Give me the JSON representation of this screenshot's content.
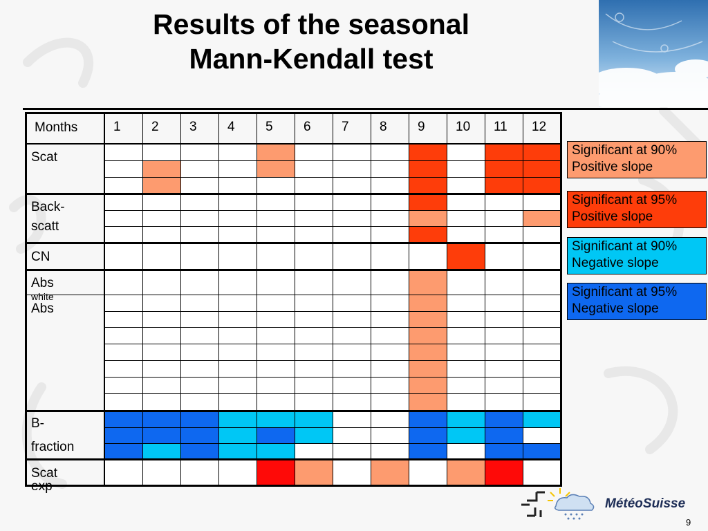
{
  "title": {
    "line1": "Results of the seasonal",
    "line2": "Mann-Kendall test"
  },
  "colors": {
    "sig90_pos": "#fd9b6f",
    "sig95_pos": "#fe3d0a",
    "sig90_neg": "#00c7f5",
    "sig95_neg": "#0e68f0",
    "strong_red": "#fe0a08",
    "none": "#ffffff"
  },
  "table": {
    "months_label": "Months",
    "months": [
      "1",
      "2",
      "3",
      "4",
      "5",
      "6",
      "7",
      "8",
      "9",
      "10",
      "11",
      "12"
    ],
    "groups": [
      {
        "label": "Scat",
        "rows": [
          [
            "",
            "",
            "",
            "",
            "sig90_pos",
            "",
            "",
            "",
            "sig95_pos",
            "",
            "sig95_pos",
            "sig95_pos"
          ],
          [
            "",
            "sig90_pos",
            "",
            "",
            "sig90_pos",
            "",
            "",
            "",
            "sig95_pos",
            "",
            "sig95_pos",
            "sig95_pos"
          ],
          [
            "",
            "sig90_pos",
            "",
            "",
            "",
            "",
            "",
            "",
            "sig95_pos",
            "",
            "sig95_pos",
            "sig95_pos"
          ]
        ]
      },
      {
        "label_line1": "Back-",
        "label_line2": "scatt",
        "rows": [
          [
            "",
            "",
            "",
            "",
            "",
            "",
            "",
            "",
            "sig95_pos",
            "",
            "",
            ""
          ],
          [
            "",
            "",
            "",
            "",
            "",
            "",
            "",
            "",
            "sig90_pos",
            "",
            "",
            "sig90_pos"
          ],
          [
            "",
            "",
            "",
            "",
            "",
            "",
            "",
            "",
            "sig95_pos",
            "",
            "",
            ""
          ]
        ]
      },
      {
        "label": "CN",
        "rows": [
          [
            "",
            "",
            "",
            "",
            "",
            "",
            "",
            "",
            "",
            "sig95_pos",
            "",
            ""
          ]
        ]
      },
      {
        "label_main": "Abs",
        "label_sub": "white",
        "label2": "Abs",
        "rows": [
          [
            "",
            "",
            "",
            "",
            "",
            "",
            "",
            "",
            "sig90_pos",
            "",
            "",
            ""
          ],
          [
            "",
            "",
            "",
            "",
            "",
            "",
            "",
            "",
            "sig90_pos",
            "",
            "",
            ""
          ],
          [
            "",
            "",
            "",
            "",
            "",
            "",
            "",
            "",
            "sig90_pos",
            "",
            "",
            ""
          ],
          [
            "",
            "",
            "",
            "",
            "",
            "",
            "",
            "",
            "sig90_pos",
            "",
            "",
            ""
          ],
          [
            "",
            "",
            "",
            "",
            "",
            "",
            "",
            "",
            "sig90_pos",
            "",
            "",
            ""
          ],
          [
            "",
            "",
            "",
            "",
            "",
            "",
            "",
            "",
            "sig90_pos",
            "",
            "",
            ""
          ],
          [
            "",
            "",
            "",
            "",
            "",
            "",
            "",
            "",
            "sig90_pos",
            "",
            "",
            ""
          ],
          [
            "",
            "",
            "",
            "",
            "",
            "",
            "",
            "",
            "sig90_pos",
            "",
            "",
            ""
          ]
        ]
      },
      {
        "label_line1": "B-",
        "label_line2": "fraction",
        "rows": [
          [
            "sig95_neg",
            "sig95_neg",
            "sig95_neg",
            "sig90_neg",
            "sig90_neg",
            "sig90_neg",
            "",
            "",
            "sig95_neg",
            "sig90_neg",
            "sig95_neg",
            "sig90_neg"
          ],
          [
            "sig95_neg",
            "sig95_neg",
            "sig95_neg",
            "sig90_neg",
            "sig95_neg",
            "sig90_neg",
            "",
            "",
            "sig95_neg",
            "sig90_neg",
            "sig95_neg",
            ""
          ],
          [
            "sig95_neg",
            "sig90_neg",
            "sig95_neg",
            "sig90_neg",
            "sig90_neg",
            "",
            "",
            "",
            "sig95_neg",
            "",
            "sig95_neg",
            "sig95_neg"
          ]
        ]
      },
      {
        "label": "Scat exp",
        "rows": [
          [
            "",
            "",
            "",
            "",
            "strong_red",
            "sig90_pos",
            "",
            "sig90_pos",
            "",
            "sig90_pos",
            "strong_red",
            ""
          ]
        ]
      }
    ]
  },
  "legend": [
    {
      "line1": "Significant at 90%",
      "line2": "Positive slope",
      "color_key": "sig90_pos"
    },
    {
      "line1": "Significant at 95%",
      "line2": "Positive slope",
      "color_key": "sig95_pos"
    },
    {
      "line1": "Significant at 90%",
      "line2": "Negative slope",
      "color_key": "sig90_neg"
    },
    {
      "line1": "Significant at 95%",
      "line2": "Negative slope",
      "color_key": "sig95_neg"
    }
  ],
  "logo": {
    "text": "MétéoSuisse",
    "icon": "meteoswiss-logo-icon"
  },
  "page_number": "9",
  "photo": {
    "icon": "sky-clouds-photo"
  }
}
